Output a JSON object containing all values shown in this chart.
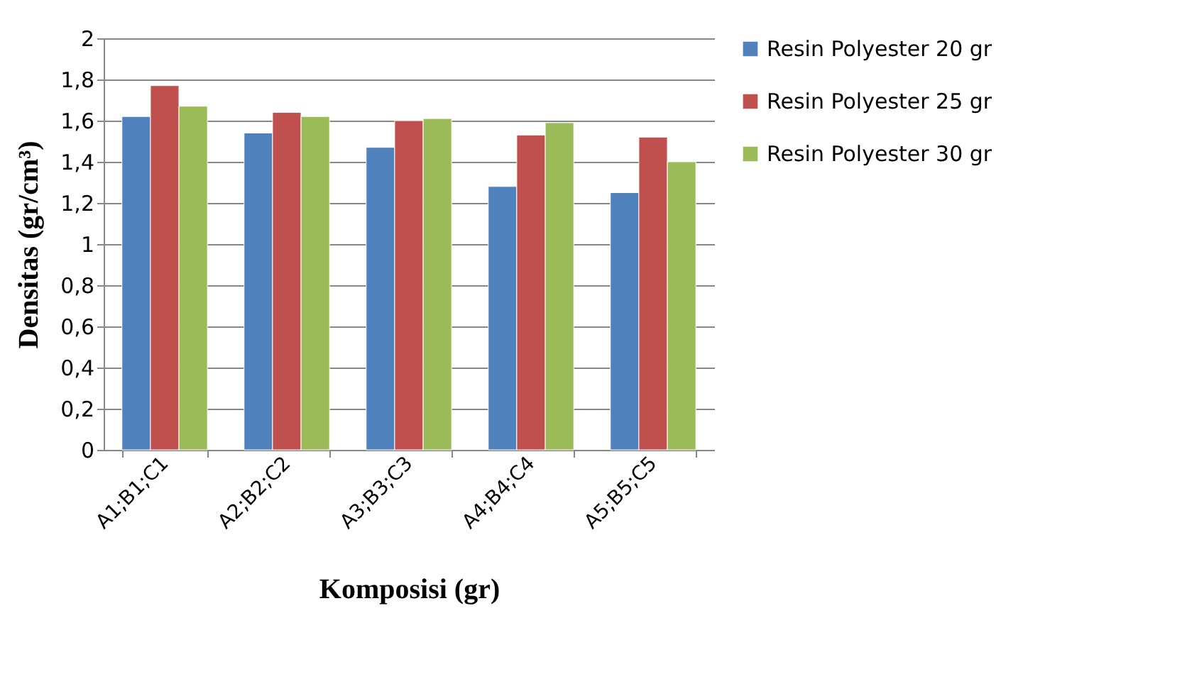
{
  "chart_data": {
    "type": "bar",
    "xlabel": "Komposisi (gr)",
    "ylabel": "Densitas (gr/cm³)",
    "categories": [
      "A1;B1;C1",
      "A2;B2;C2",
      "A3;B3;C3",
      "A4;B4;C4",
      "A5;B5;C5"
    ],
    "series": [
      {
        "name": "Resin Polyester 20 gr",
        "color": "#4f81bd",
        "values": [
          1.62,
          1.54,
          1.47,
          1.28,
          1.25
        ]
      },
      {
        "name": "Resin Polyester 25 gr",
        "color": "#c0504d",
        "values": [
          1.77,
          1.64,
          1.6,
          1.53,
          1.52
        ]
      },
      {
        "name": "Resin Polyester 30 gr",
        "color": "#9bbb59",
        "values": [
          1.67,
          1.62,
          1.61,
          1.59,
          1.4
        ]
      }
    ],
    "ylim": [
      0,
      2
    ],
    "yticks": [
      {
        "value": 0,
        "label": "0"
      },
      {
        "value": 0.2,
        "label": "0,2"
      },
      {
        "value": 0.4,
        "label": "0,4"
      },
      {
        "value": 0.6,
        "label": "0,6"
      },
      {
        "value": 0.8,
        "label": "0,8"
      },
      {
        "value": 1,
        "label": "1"
      },
      {
        "value": 1.2,
        "label": "1,2"
      },
      {
        "value": 1.4,
        "label": "1,4"
      },
      {
        "value": 1.6,
        "label": "1,6"
      },
      {
        "value": 1.8,
        "label": "1,8"
      },
      {
        "value": 2,
        "label": "2"
      }
    ],
    "grid": "y",
    "legend": "right"
  }
}
